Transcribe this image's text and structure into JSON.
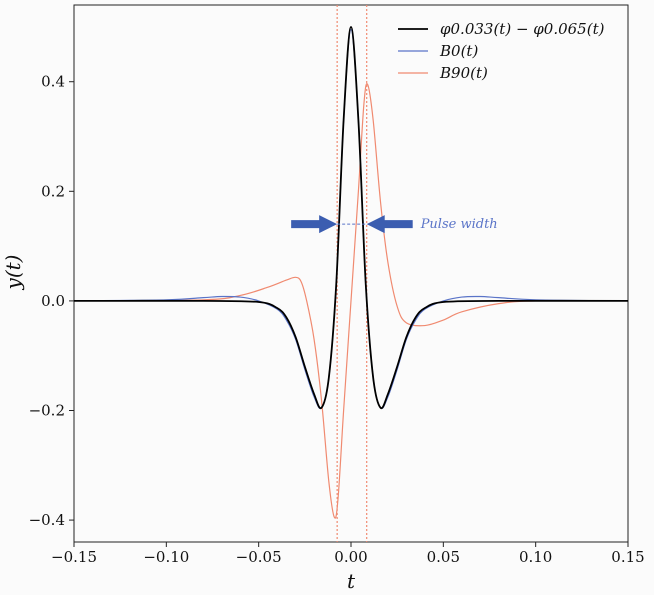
{
  "chart_data": {
    "type": "line",
    "xlabel": "t",
    "ylabel": "y(t)",
    "xlim": [
      -0.15,
      0.15
    ],
    "ylim": [
      -0.44,
      0.54
    ],
    "xticks": [
      -0.15,
      -0.1,
      -0.05,
      0.0,
      0.05,
      0.1,
      0.15
    ],
    "xtick_labels": [
      "−0.15",
      "−0.10",
      "−0.05",
      "0.00",
      "0.05",
      "0.10",
      "0.15"
    ],
    "yticks": [
      -0.4,
      -0.2,
      0.0,
      0.2,
      0.4
    ],
    "ytick_labels": [
      "−0.4",
      "−0.2",
      "0.0",
      "0.2",
      "0.4"
    ],
    "grid": false,
    "legend_position": "top-right",
    "series": [
      {
        "name": "φ0.033(t) − φ0.065(t)",
        "color": "#000000",
        "x": [
          -0.15,
          -0.08,
          -0.05,
          -0.04,
          -0.035,
          -0.03,
          -0.025,
          -0.02,
          -0.016,
          -0.012,
          -0.008,
          -0.004,
          0.0,
          0.004,
          0.008,
          0.012,
          0.016,
          0.02,
          0.025,
          0.03,
          0.035,
          0.04,
          0.05,
          0.08,
          0.15
        ],
        "y": [
          0.0,
          0.0,
          -0.002,
          -0.013,
          -0.03,
          -0.066,
          -0.12,
          -0.17,
          -0.195,
          -0.14,
          0.03,
          0.33,
          0.5,
          0.33,
          0.03,
          -0.14,
          -0.195,
          -0.17,
          -0.12,
          -0.066,
          -0.03,
          -0.013,
          -0.002,
          0.0,
          0.0
        ]
      },
      {
        "name": "B0(t)",
        "color": "#5a74c8",
        "x": [
          -0.15,
          -0.1,
          -0.08,
          -0.07,
          -0.06,
          -0.05,
          -0.04,
          -0.035,
          -0.03,
          -0.025,
          -0.02,
          -0.016,
          -0.012,
          -0.008,
          -0.004,
          0.0,
          0.004,
          0.008,
          0.012,
          0.016,
          0.02,
          0.025,
          0.03,
          0.035,
          0.04,
          0.05,
          0.06,
          0.07,
          0.08,
          0.1,
          0.15
        ],
        "y": [
          0.0,
          0.002,
          0.006,
          0.008,
          0.007,
          0.0,
          -0.015,
          -0.035,
          -0.07,
          -0.125,
          -0.175,
          -0.195,
          -0.14,
          0.03,
          0.33,
          0.495,
          0.33,
          0.03,
          -0.14,
          -0.195,
          -0.175,
          -0.125,
          -0.07,
          -0.035,
          -0.015,
          0.0,
          0.007,
          0.008,
          0.006,
          0.002,
          0.0
        ]
      },
      {
        "name": "B90(t)",
        "color": "#f08a70",
        "x": [
          -0.15,
          -0.08,
          -0.06,
          -0.045,
          -0.035,
          -0.03,
          -0.027,
          -0.024,
          -0.02,
          -0.016,
          -0.012,
          -0.009,
          -0.007,
          -0.004,
          0.0,
          0.004,
          0.007,
          0.009,
          0.012,
          0.016,
          0.02,
          0.025,
          0.03,
          0.04,
          0.05,
          0.06,
          0.08,
          0.1,
          0.15
        ],
        "y": [
          0.0,
          0.002,
          0.01,
          0.025,
          0.038,
          0.043,
          0.035,
          0.0,
          -0.07,
          -0.18,
          -0.33,
          -0.395,
          -0.36,
          -0.2,
          0.0,
          0.2,
          0.36,
          0.395,
          0.33,
          0.18,
          0.07,
          -0.01,
          -0.04,
          -0.045,
          -0.035,
          -0.02,
          -0.005,
          0.0,
          0.0
        ]
      }
    ],
    "vlines": [
      {
        "x": -0.0075,
        "color": "#f08a70",
        "style": "dotted"
      },
      {
        "x": 0.0085,
        "color": "#f08a70",
        "style": "dotted"
      }
    ],
    "annotations": [
      {
        "text": "Pulse width",
        "y": 0.14,
        "x_from": -0.0075,
        "x_to": 0.0085,
        "color": "#5a74c8"
      }
    ]
  }
}
